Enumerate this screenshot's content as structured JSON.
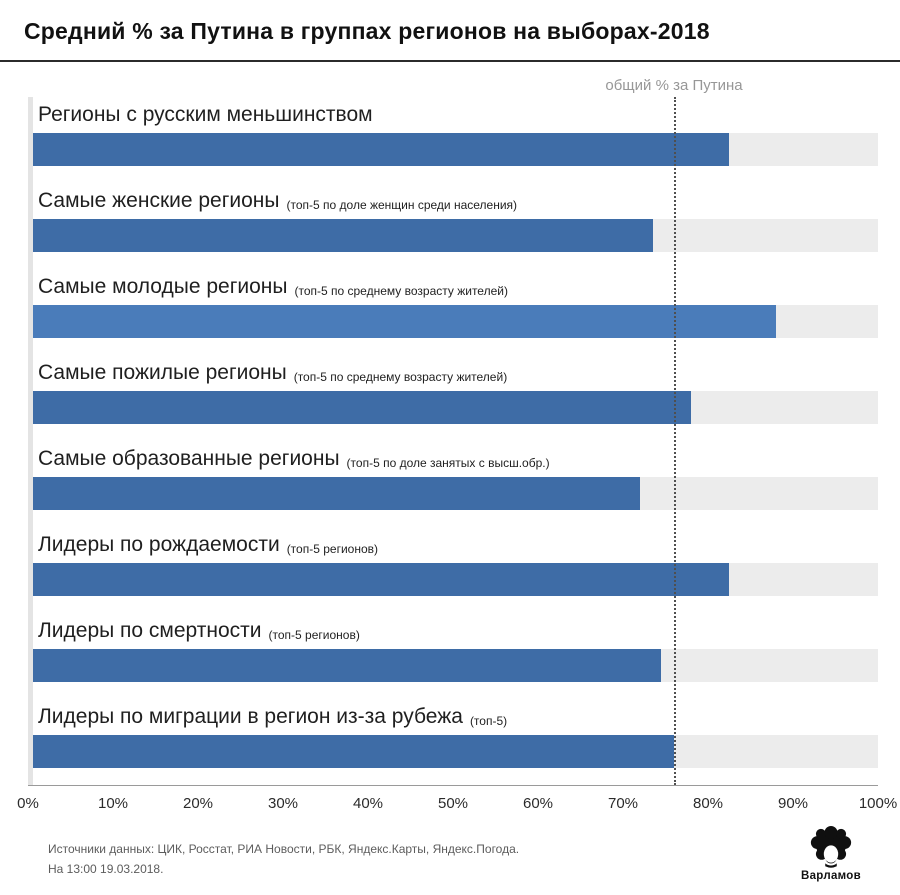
{
  "title": "Средний % за Путина в группах регионов на выборах-2018",
  "chart_data": {
    "type": "bar",
    "orientation": "horizontal",
    "title": "Средний % за Путина в группах регионов на выборах-2018",
    "xlim": [
      0,
      100
    ],
    "x_ticks": [
      "0%",
      "10%",
      "20%",
      "30%",
      "40%",
      "50%",
      "60%",
      "70%",
      "80%",
      "90%",
      "100%"
    ],
    "grid": false,
    "legend": false,
    "reference_line": {
      "label": "общий % за Путина",
      "value": 76
    },
    "bar_color": "#3e6ca6",
    "track_color": "#ececec",
    "categories": [
      {
        "label": "Регионы с русским меньшинством",
        "note": "",
        "value": 82.5,
        "color": "#3e6ca6"
      },
      {
        "label": "Самые женские регионы",
        "note": "(топ-5 по доле женщин среди населения)",
        "value": 73.5,
        "color": "#3e6ca6"
      },
      {
        "label": "Самые молодые регионы",
        "note": "(топ-5 по среднему возрасту жителей)",
        "value": 88,
        "color": "#4a7cba"
      },
      {
        "label": "Самые пожилые регионы",
        "note": "(топ-5 по среднему возрасту жителей)",
        "value": 78,
        "color": "#3e6ca6"
      },
      {
        "label": "Самые образованные регионы",
        "note": "(топ-5 по доле занятых с высш.обр.)",
        "value": 72,
        "color": "#3e6ca6"
      },
      {
        "label": "Лидеры по рождаемости",
        "note": "(топ-5 регионов)",
        "value": 82.5,
        "color": "#3e6ca6"
      },
      {
        "label": "Лидеры по смертности",
        "note": "(топ-5 регионов)",
        "value": 74.5,
        "color": "#3e6ca6"
      },
      {
        "label": "Лидеры по миграции в регион из-за рубежа",
        "note": "(топ-5)",
        "value": 76,
        "color": "#3e6ca6"
      }
    ]
  },
  "footer": {
    "sources": "Источники данных: ЦИК, Росстат, РИА Новости, РБК, Яндекс.Карты, Яндекс.Погода.",
    "timestamp": "На 13:00 19.03.2018."
  },
  "logo": {
    "text": "Варламов"
  }
}
